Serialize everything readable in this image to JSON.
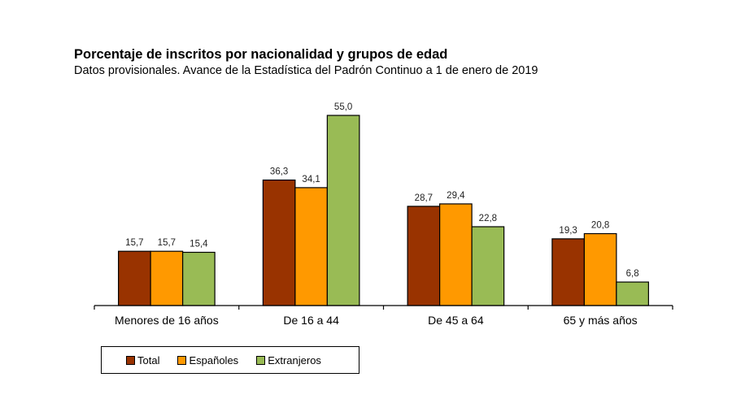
{
  "chart_data": {
    "type": "bar",
    "title": "Porcentaje de inscritos por nacionalidad y grupos de edad",
    "subtitle": "Datos provisionales. Avance de la Estadística del Padrón Continuo a 1 de enero de 2019",
    "categories": [
      "Menores de 16 años",
      "De 16 a 44",
      "De 45 a 64",
      "65 y más años"
    ],
    "series": [
      {
        "name": "Total",
        "color": "#993300",
        "values": [
          15.7,
          36.3,
          28.7,
          19.3
        ],
        "labels": [
          "15,7",
          "36,3",
          "28,7",
          "19,3"
        ]
      },
      {
        "name": "Españoles",
        "color": "#ff9900",
        "values": [
          15.7,
          34.1,
          29.4,
          20.8
        ],
        "labels": [
          "15,7",
          "34,1",
          "29,4",
          "20,8"
        ]
      },
      {
        "name": "Extranjeros",
        "color": "#99bb55",
        "values": [
          15.4,
          55.0,
          22.8,
          6.8
        ],
        "labels": [
          "15,4",
          "55,0",
          "22,8",
          "6,8"
        ]
      }
    ],
    "xlabel": "",
    "ylabel": "",
    "ylim": [
      0,
      55
    ],
    "grid": false,
    "legend_position": "bottom-left"
  }
}
